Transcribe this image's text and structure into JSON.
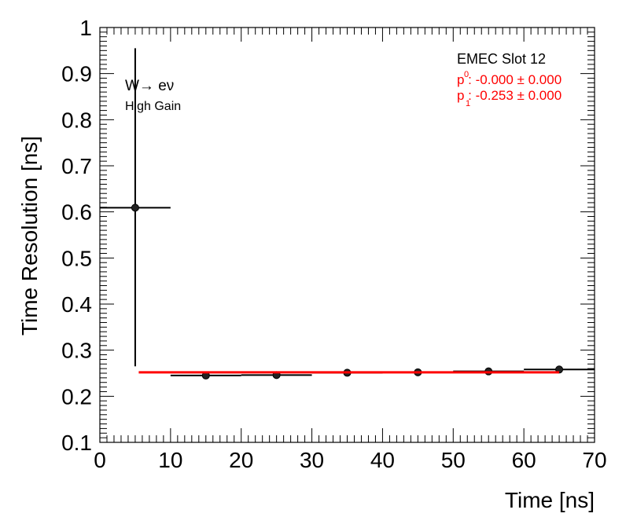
{
  "chart_data": {
    "type": "scatter",
    "xlabel": "Time [ns]",
    "ylabel": "Time Resolution [ns]",
    "xlim": [
      0,
      70
    ],
    "ylim": [
      0.1,
      1.0
    ],
    "x_ticks": [
      "0",
      "10",
      "20",
      "30",
      "40",
      "50",
      "60",
      "70"
    ],
    "y_ticks": [
      "0.1",
      "0.2",
      "0.3",
      "0.4",
      "0.5",
      "0.6",
      "0.7",
      "0.8",
      "0.9",
      "1"
    ],
    "grid": false,
    "series": [
      {
        "marker": "filled-circle",
        "color": "#000000",
        "points": [
          {
            "x": 5,
            "y": 0.609,
            "x_lo": 0,
            "x_hi": 10,
            "y_lo": 0.265,
            "y_hi": 0.955
          },
          {
            "x": 15,
            "y": 0.245,
            "x_lo": 10,
            "x_hi": 20,
            "y_lo": 0.245,
            "y_hi": 0.245
          },
          {
            "x": 25,
            "y": 0.246,
            "x_lo": 20,
            "x_hi": 30,
            "y_lo": 0.246,
            "y_hi": 0.246
          },
          {
            "x": 35,
            "y": 0.251,
            "x_lo": 30,
            "x_hi": 40,
            "y_lo": 0.251,
            "y_hi": 0.251
          },
          {
            "x": 45,
            "y": 0.252,
            "x_lo": 40,
            "x_hi": 50,
            "y_lo": 0.252,
            "y_hi": 0.252
          },
          {
            "x": 55,
            "y": 0.254,
            "x_lo": 50,
            "x_hi": 60,
            "y_lo": 0.254,
            "y_hi": 0.254
          },
          {
            "x": 65,
            "y": 0.258,
            "x_lo": 60,
            "x_hi": 70,
            "y_lo": 0.258,
            "y_hi": 0.258
          }
        ]
      }
    ],
    "fit": {
      "color": "#ff0000",
      "x_range": [
        5.5,
        65
      ],
      "y_values": [
        0.252,
        0.252
      ]
    },
    "annotations": {
      "process": "W→ eν",
      "gain": "High Gain",
      "slot": "EMEC Slot 12",
      "p0_line": "p : -0.000 ± 0.000",
      "p0_index": "0",
      "p1_line": "p : -0.253 ± 0.000",
      "p1_index": "1"
    }
  }
}
